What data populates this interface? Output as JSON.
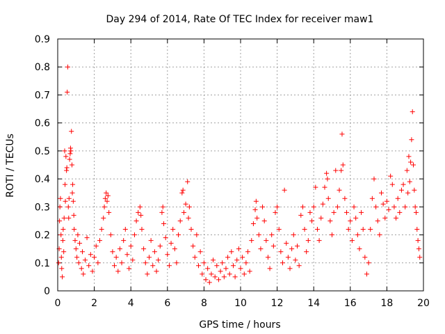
{
  "chart_data": {
    "type": "scatter",
    "title": "Day 294 of 2014, Rate Of TEC Index for receiver maw1",
    "xlabel": "GPS time / hours",
    "ylabel": "ROTI / TECUs",
    "xlim": [
      0,
      20
    ],
    "ylim": [
      0,
      0.9
    ],
    "xticks": [
      0,
      2,
      4,
      6,
      8,
      10,
      12,
      14,
      16,
      18,
      20
    ],
    "xtick_labels": [
      "0",
      "2",
      "4",
      "6",
      "8",
      "10",
      "12",
      "14",
      "16",
      "18",
      "20"
    ],
    "yticks": [
      0,
      0.1,
      0.2,
      0.3,
      0.4,
      0.5,
      0.6,
      0.7,
      0.8,
      0.9
    ],
    "ytick_labels": [
      "0",
      "0.1",
      "0.2",
      "0.3",
      "0.4",
      "0.5",
      "0.6",
      "0.7",
      "0.8",
      "0.9"
    ],
    "grid": true,
    "marker": "+",
    "color": "#ff0000",
    "points": [
      [
        0.05,
        0.1
      ],
      [
        0.08,
        0.15
      ],
      [
        0.1,
        0.25
      ],
      [
        0.12,
        0.3
      ],
      [
        0.15,
        0.33
      ],
      [
        0.18,
        0.2
      ],
      [
        0.2,
        0.12
      ],
      [
        0.22,
        0.08
      ],
      [
        0.25,
        0.05
      ],
      [
        0.28,
        0.18
      ],
      [
        0.3,
        0.22
      ],
      [
        0.33,
        0.14
      ],
      [
        0.35,
        0.26
      ],
      [
        0.38,
        0.5
      ],
      [
        0.4,
        0.38
      ],
      [
        0.42,
        0.32
      ],
      [
        0.45,
        0.48
      ],
      [
        0.48,
        0.43
      ],
      [
        0.5,
        0.44
      ],
      [
        0.52,
        0.71
      ],
      [
        0.55,
        0.8
      ],
      [
        0.58,
        0.3
      ],
      [
        0.6,
        0.26
      ],
      [
        0.62,
        0.33
      ],
      [
        0.65,
        0.47
      ],
      [
        0.68,
        0.49
      ],
      [
        0.7,
        0.51
      ],
      [
        0.72,
        0.5
      ],
      [
        0.75,
        0.57
      ],
      [
        0.78,
        0.45
      ],
      [
        0.8,
        0.35
      ],
      [
        0.82,
        0.38
      ],
      [
        0.85,
        0.32
      ],
      [
        0.88,
        0.27
      ],
      [
        0.9,
        0.22
      ],
      [
        0.95,
        0.18
      ],
      [
        1.0,
        0.15
      ],
      [
        1.05,
        0.12
      ],
      [
        1.1,
        0.2
      ],
      [
        1.15,
        0.1
      ],
      [
        1.2,
        0.17
      ],
      [
        1.3,
        0.08
      ],
      [
        1.35,
        0.14
      ],
      [
        1.4,
        0.06
      ],
      [
        1.5,
        0.11
      ],
      [
        1.6,
        0.19
      ],
      [
        1.7,
        0.09
      ],
      [
        1.8,
        0.13
      ],
      [
        1.9,
        0.07
      ],
      [
        2.0,
        0.12
      ],
      [
        2.1,
        0.16
      ],
      [
        2.2,
        0.1
      ],
      [
        2.3,
        0.18
      ],
      [
        2.4,
        0.22
      ],
      [
        2.5,
        0.26
      ],
      [
        2.55,
        0.3
      ],
      [
        2.6,
        0.33
      ],
      [
        2.65,
        0.35
      ],
      [
        2.7,
        0.32
      ],
      [
        2.75,
        0.34
      ],
      [
        2.8,
        0.28
      ],
      [
        2.9,
        0.2
      ],
      [
        3.0,
        0.14
      ],
      [
        3.1,
        0.09
      ],
      [
        3.2,
        0.12
      ],
      [
        3.3,
        0.07
      ],
      [
        3.4,
        0.15
      ],
      [
        3.5,
        0.1
      ],
      [
        3.6,
        0.18
      ],
      [
        3.7,
        0.22
      ],
      [
        3.8,
        0.13
      ],
      [
        3.9,
        0.08
      ],
      [
        4.0,
        0.16
      ],
      [
        4.1,
        0.11
      ],
      [
        4.2,
        0.2
      ],
      [
        4.3,
        0.25
      ],
      [
        4.4,
        0.28
      ],
      [
        4.5,
        0.3
      ],
      [
        4.55,
        0.27
      ],
      [
        4.6,
        0.22
      ],
      [
        4.7,
        0.15
      ],
      [
        4.8,
        0.1
      ],
      [
        4.9,
        0.06
      ],
      [
        5.0,
        0.12
      ],
      [
        5.1,
        0.18
      ],
      [
        5.2,
        0.09
      ],
      [
        5.3,
        0.14
      ],
      [
        5.4,
        0.07
      ],
      [
        5.5,
        0.11
      ],
      [
        5.6,
        0.16
      ],
      [
        5.7,
        0.28
      ],
      [
        5.75,
        0.3
      ],
      [
        5.8,
        0.24
      ],
      [
        5.9,
        0.19
      ],
      [
        6.0,
        0.13
      ],
      [
        6.1,
        0.09
      ],
      [
        6.2,
        0.17
      ],
      [
        6.3,
        0.22
      ],
      [
        6.4,
        0.15
      ],
      [
        6.5,
        0.1
      ],
      [
        6.6,
        0.2
      ],
      [
        6.7,
        0.25
      ],
      [
        6.8,
        0.35
      ],
      [
        6.85,
        0.36
      ],
      [
        6.9,
        0.28
      ],
      [
        7.0,
        0.31
      ],
      [
        7.1,
        0.39
      ],
      [
        7.15,
        0.26
      ],
      [
        7.2,
        0.3
      ],
      [
        7.3,
        0.22
      ],
      [
        7.4,
        0.16
      ],
      [
        7.5,
        0.12
      ],
      [
        7.6,
        0.2
      ],
      [
        7.7,
        0.09
      ],
      [
        7.8,
        0.14
      ],
      [
        7.9,
        0.06
      ],
      [
        8.0,
        0.1
      ],
      [
        8.1,
        0.04
      ],
      [
        8.2,
        0.08
      ],
      [
        8.3,
        0.03
      ],
      [
        8.4,
        0.06
      ],
      [
        8.5,
        0.11
      ],
      [
        8.6,
        0.05
      ],
      [
        8.7,
        0.09
      ],
      [
        8.8,
        0.04
      ],
      [
        8.9,
        0.07
      ],
      [
        9.0,
        0.1
      ],
      [
        9.1,
        0.05
      ],
      [
        9.2,
        0.08
      ],
      [
        9.3,
        0.12
      ],
      [
        9.4,
        0.06
      ],
      [
        9.5,
        0.14
      ],
      [
        9.6,
        0.09
      ],
      [
        9.7,
        0.05
      ],
      [
        9.8,
        0.11
      ],
      [
        9.9,
        0.15
      ],
      [
        10.0,
        0.08
      ],
      [
        10.1,
        0.12
      ],
      [
        10.2,
        0.06
      ],
      [
        10.3,
        0.1
      ],
      [
        10.4,
        0.14
      ],
      [
        10.5,
        0.07
      ],
      [
        10.6,
        0.18
      ],
      [
        10.7,
        0.24
      ],
      [
        10.8,
        0.29
      ],
      [
        10.85,
        0.32
      ],
      [
        10.9,
        0.26
      ],
      [
        11.0,
        0.2
      ],
      [
        11.1,
        0.15
      ],
      [
        11.2,
        0.3
      ],
      [
        11.3,
        0.25
      ],
      [
        11.4,
        0.18
      ],
      [
        11.5,
        0.12
      ],
      [
        11.6,
        0.08
      ],
      [
        11.7,
        0.2
      ],
      [
        11.8,
        0.16
      ],
      [
        11.9,
        0.28
      ],
      [
        12.0,
        0.3
      ],
      [
        12.1,
        0.22
      ],
      [
        12.2,
        0.14
      ],
      [
        12.3,
        0.1
      ],
      [
        12.4,
        0.36
      ],
      [
        12.5,
        0.17
      ],
      [
        12.6,
        0.12
      ],
      [
        12.7,
        0.08
      ],
      [
        12.8,
        0.15
      ],
      [
        12.9,
        0.2
      ],
      [
        13.0,
        0.11
      ],
      [
        13.1,
        0.16
      ],
      [
        13.2,
        0.09
      ],
      [
        13.3,
        0.27
      ],
      [
        13.4,
        0.3
      ],
      [
        13.5,
        0.22
      ],
      [
        13.6,
        0.14
      ],
      [
        13.7,
        0.18
      ],
      [
        13.8,
        0.28
      ],
      [
        13.9,
        0.25
      ],
      [
        14.0,
        0.3
      ],
      [
        14.1,
        0.37
      ],
      [
        14.2,
        0.22
      ],
      [
        14.3,
        0.18
      ],
      [
        14.4,
        0.26
      ],
      [
        14.5,
        0.31
      ],
      [
        14.6,
        0.37
      ],
      [
        14.7,
        0.42
      ],
      [
        14.75,
        0.4
      ],
      [
        14.8,
        0.33
      ],
      [
        14.9,
        0.25
      ],
      [
        15.0,
        0.2
      ],
      [
        15.1,
        0.28
      ],
      [
        15.2,
        0.43
      ],
      [
        15.3,
        0.3
      ],
      [
        15.4,
        0.36
      ],
      [
        15.5,
        0.43
      ],
      [
        15.55,
        0.56
      ],
      [
        15.6,
        0.45
      ],
      [
        15.7,
        0.33
      ],
      [
        15.8,
        0.28
      ],
      [
        15.9,
        0.22
      ],
      [
        16.0,
        0.25
      ],
      [
        16.1,
        0.18
      ],
      [
        16.2,
        0.3
      ],
      [
        16.3,
        0.26
      ],
      [
        16.4,
        0.2
      ],
      [
        16.5,
        0.15
      ],
      [
        16.6,
        0.28
      ],
      [
        16.7,
        0.22
      ],
      [
        16.8,
        0.12
      ],
      [
        16.9,
        0.06
      ],
      [
        17.0,
        0.1
      ],
      [
        17.1,
        0.22
      ],
      [
        17.2,
        0.33
      ],
      [
        17.3,
        0.4
      ],
      [
        17.4,
        0.3
      ],
      [
        17.5,
        0.25
      ],
      [
        17.6,
        0.2
      ],
      [
        17.7,
        0.35
      ],
      [
        17.8,
        0.31
      ],
      [
        17.9,
        0.26
      ],
      [
        18.0,
        0.32
      ],
      [
        18.1,
        0.29
      ],
      [
        18.2,
        0.41
      ],
      [
        18.3,
        0.38
      ],
      [
        18.4,
        0.3
      ],
      [
        18.5,
        0.26
      ],
      [
        18.6,
        0.33
      ],
      [
        18.7,
        0.28
      ],
      [
        18.8,
        0.36
      ],
      [
        18.9,
        0.38
      ],
      [
        19.0,
        0.3
      ],
      [
        19.1,
        0.43
      ],
      [
        19.15,
        0.35
      ],
      [
        19.2,
        0.48
      ],
      [
        19.25,
        0.39
      ],
      [
        19.3,
        0.46
      ],
      [
        19.35,
        0.54
      ],
      [
        19.4,
        0.64
      ],
      [
        19.45,
        0.45
      ],
      [
        19.5,
        0.36
      ],
      [
        19.55,
        0.3
      ],
      [
        19.6,
        0.28
      ],
      [
        19.65,
        0.22
      ],
      [
        19.7,
        0.18
      ],
      [
        19.75,
        0.15
      ],
      [
        19.8,
        0.12
      ]
    ]
  }
}
